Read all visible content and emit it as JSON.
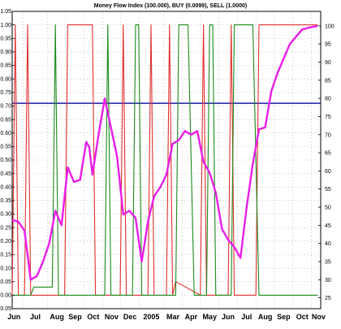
{
  "chart_data": {
    "type": "line",
    "title": "Money Flow Index (100.000), BUY (0.0099), SELL (1.0000)",
    "xlabel": "",
    "ylabel": "",
    "x_tick_labels": [
      "Jun",
      "Jul",
      "Aug",
      "Sep",
      "Oct",
      "Nov",
      "Dec",
      "2005",
      "Mar",
      "Apr",
      "May",
      "Jun",
      "Jul",
      "Aug",
      "Sep",
      "Oct",
      "Nov"
    ],
    "x_range": [
      0,
      100
    ],
    "left_axis": {
      "range": [
        -0.05,
        1.05
      ],
      "ticks": [
        "1.05",
        "1.00",
        "0.95",
        "0.90",
        "0.85",
        "0.80",
        "0.75",
        "0.70",
        "0.65",
        "0.60",
        "0.55",
        "0.50",
        "0.45",
        "0.40",
        "0.35",
        "0.30",
        "0.25",
        "0.20",
        "0.15",
        "0.10",
        "0.05",
        "0.00",
        "-0.05"
      ]
    },
    "right_axis": {
      "range": [
        22,
        104
      ],
      "ticks": [
        "100",
        "95",
        "90",
        "85",
        "80",
        "75",
        "70",
        "65",
        "60",
        "55",
        "50",
        "45",
        "40",
        "35",
        "30",
        "25"
      ]
    },
    "grid": true,
    "reference_line": {
      "axis": "left",
      "value": 0.71,
      "color": "#1a1aa8"
    },
    "series": [
      {
        "axis": "left",
        "color": "#e03030",
        "x": [
          0,
          1,
          2,
          4,
          5,
          6,
          7,
          8,
          9,
          17,
          18,
          19,
          26,
          27,
          29,
          31,
          33,
          35,
          36,
          37,
          44,
          45,
          46,
          47,
          48,
          50,
          51,
          52,
          53,
          61,
          62,
          63,
          68,
          69,
          70,
          71,
          72,
          74,
          76,
          78,
          79,
          80,
          88,
          89,
          90,
          91,
          99
        ],
        "y": [
          0.0,
          1.0,
          0.0,
          0.0,
          1.0,
          0.0,
          0.0,
          0.0,
          0.0,
          0.0,
          1.0,
          1.0,
          1.0,
          0.0,
          0.0,
          0.0,
          0.0,
          0.0,
          1.0,
          0.0,
          0.0,
          1.0,
          0.0,
          0.0,
          0.0,
          0.0,
          1.0,
          0.0,
          0.05,
          0.0,
          1.0,
          0.0,
          0.0,
          0.0,
          0.0,
          1.0,
          0.0,
          0.0,
          0.0,
          0.0,
          0.0,
          1.0,
          1.0,
          1.0,
          1.0,
          1.0,
          1.0
        ]
      },
      {
        "axis": "left",
        "color": "#1a8a1a",
        "x": [
          0,
          2,
          4,
          5,
          6,
          7,
          8,
          9,
          13,
          14,
          15,
          16,
          17,
          30,
          31,
          32,
          33,
          34,
          35,
          36,
          37,
          39,
          40,
          41,
          42,
          43,
          45,
          46,
          47,
          53,
          54,
          55,
          56,
          57,
          59,
          63,
          64,
          65,
          66,
          67,
          71,
          72,
          73,
          74,
          75,
          76,
          77,
          78,
          80,
          99
        ],
        "y": [
          0.0,
          0.0,
          0.0,
          0.0,
          0.0,
          0.03,
          0.03,
          0.03,
          0.03,
          1.0,
          0.0,
          0.0,
          0.0,
          0.0,
          1.0,
          0.0,
          0.0,
          0.0,
          0.0,
          0.0,
          0.0,
          0.0,
          1.0,
          1.0,
          0.0,
          0.0,
          0.0,
          0.0,
          0.0,
          0.0,
          1.0,
          1.0,
          1.0,
          1.0,
          0.0,
          0.0,
          1.0,
          1.0,
          0.0,
          0.0,
          0.0,
          1.0,
          1.0,
          1.0,
          1.0,
          1.0,
          1.0,
          1.0,
          0.0,
          0.0
        ]
      },
      {
        "axis": "right",
        "color": "#e81ee8",
        "x": [
          0,
          2,
          4,
          6,
          8,
          10,
          12,
          14,
          16,
          18,
          20,
          22,
          24,
          25,
          26,
          28,
          30,
          32,
          34,
          36,
          38,
          40,
          42,
          44,
          46,
          48,
          50,
          52,
          54,
          56,
          58,
          60,
          62,
          64,
          66,
          68,
          70,
          72,
          74,
          76,
          78,
          80,
          82,
          84,
          86,
          88,
          90,
          92,
          94,
          96,
          99
        ],
        "y": [
          46.5,
          46.0,
          43.5,
          30.0,
          31.0,
          35.0,
          40.0,
          49.0,
          45.0,
          61.0,
          57.0,
          57.5,
          68.0,
          66.5,
          59.0,
          70.0,
          80.0,
          72.0,
          64.0,
          48.0,
          49.0,
          47.0,
          35.0,
          46.0,
          53.0,
          55.5,
          59.0,
          67.5,
          68.5,
          71.0,
          70.0,
          71.0,
          62.5,
          59.5,
          54.0,
          44.0,
          41.0,
          39.0,
          36.0,
          50.0,
          62.0,
          71.5,
          72.0,
          82.0,
          87.0,
          91.0,
          95.0,
          97.0,
          99.0,
          99.5,
          100.0
        ]
      }
    ]
  }
}
